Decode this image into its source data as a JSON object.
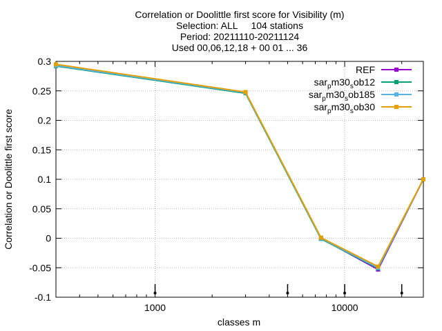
{
  "chart_data": {
    "type": "line",
    "title_lines": [
      "Correlation or Doolittle first score  for Visibility (m)",
      "Selection: ALL     104 stations",
      "Period: 20211110-20211124",
      "Used 00,06,12,18 + 00 01 ... 36"
    ],
    "xlabel": "classes m",
    "ylabel": "Correlation or Doolittle first score",
    "x_scale": "log",
    "xlim": [
      300,
      26000
    ],
    "ylim": [
      -0.1,
      0.3
    ],
    "x_ticks": [
      1000,
      10000
    ],
    "x_tick_labels": [
      "1000",
      "10000"
    ],
    "y_ticks": [
      -0.1,
      -0.05,
      0,
      0.05,
      0.1,
      0.15,
      0.2,
      0.25,
      0.3
    ],
    "y_tick_labels": [
      "-0.1",
      "-0.05",
      "0",
      "0.05",
      "0.1",
      "0.15",
      "0.2",
      "0.25",
      "0.3"
    ],
    "grid": true,
    "legend_position": "top-right",
    "class_markers_x": [
      1000,
      5000,
      10000,
      20000
    ],
    "series": [
      {
        "name": "REF",
        "color": "#9400d3",
        "x": [
          300,
          3000,
          7500,
          15000,
          26000
        ],
        "y": [
          0.294,
          0.247,
          0.0,
          -0.053,
          0.1
        ]
      },
      {
        "name": "sar_p m30_s ob12",
        "label_parts": [
          "sar",
          "p",
          "m30",
          "s",
          "ob12"
        ],
        "color": "#009e73",
        "x": [
          300,
          3000,
          7500,
          15000,
          26000
        ],
        "y": [
          0.292,
          0.246,
          -0.001,
          -0.051,
          0.1
        ]
      },
      {
        "name": "sar_p m30_s ob185",
        "label_parts": [
          "sar",
          "p",
          "m30",
          "s",
          "ob185"
        ],
        "color": "#56b4e9",
        "x": [
          300,
          3000,
          7500,
          15000,
          26000
        ],
        "y": [
          0.293,
          0.247,
          0.0,
          -0.05,
          0.1
        ]
      },
      {
        "name": "sar_p m30_s ob30",
        "label_parts": [
          "sar",
          "p",
          "m30",
          "s",
          "ob30"
        ],
        "color": "#e69f00",
        "x": [
          300,
          3000,
          7500,
          15000,
          26000
        ],
        "y": [
          0.295,
          0.248,
          0.001,
          -0.048,
          0.1
        ]
      }
    ]
  }
}
